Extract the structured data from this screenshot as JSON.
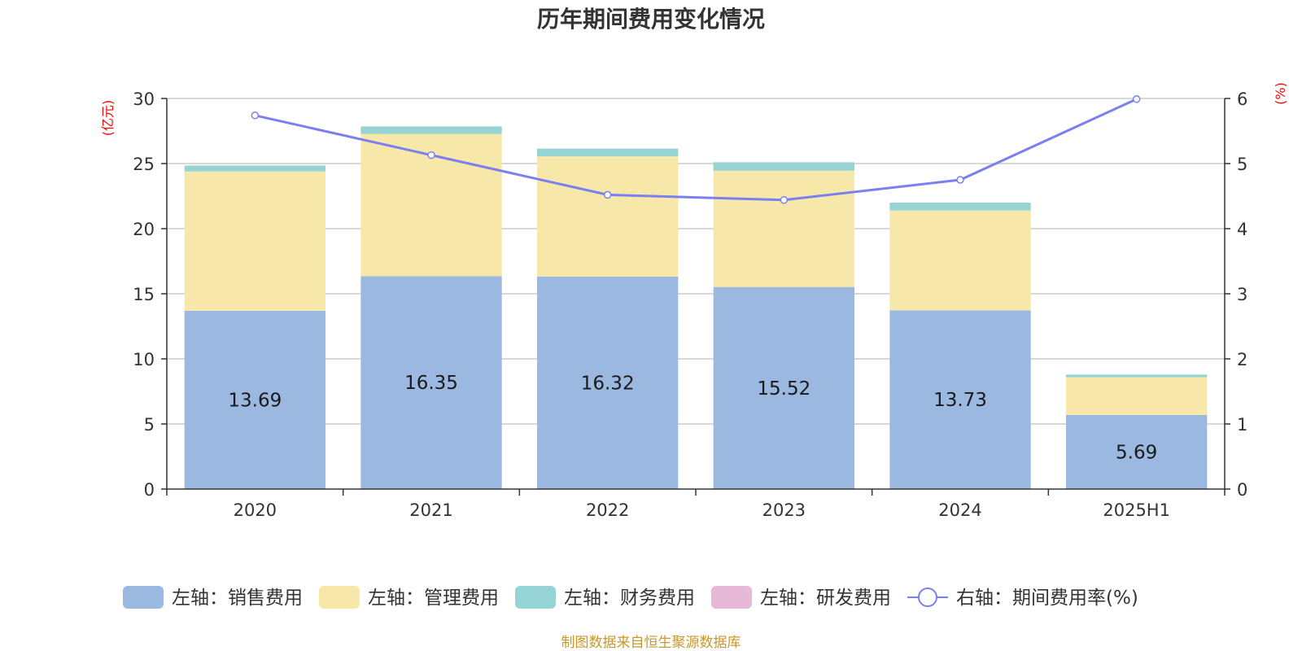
{
  "chart_data": {
    "type": "bar",
    "stacked": true,
    "title": "历年期间费用变化情况",
    "left_axis_unit": "(亿元)",
    "right_axis_unit": "(%)",
    "categories": [
      "2020",
      "2021",
      "2022",
      "2023",
      "2024",
      "2025H1"
    ],
    "ylim_left": [
      0,
      30
    ],
    "yticks_left": [
      "0",
      "5",
      "10",
      "15",
      "20",
      "25",
      "30"
    ],
    "ylim_right": [
      0,
      6
    ],
    "yticks_right": [
      "0",
      "1",
      "2",
      "3",
      "4",
      "5",
      "6"
    ],
    "grid": true,
    "series": [
      {
        "name": "左轴：销售费用",
        "axis": "left",
        "color": "#9bb8e1",
        "values": [
          13.69,
          16.35,
          16.32,
          15.52,
          13.73,
          5.69
        ],
        "labels": [
          "13.69",
          "16.35",
          "16.32",
          "15.52",
          "13.73",
          "5.69"
        ]
      },
      {
        "name": "左轴：管理费用",
        "axis": "left",
        "color": "#f7e8a9",
        "values": [
          10.71,
          10.93,
          9.23,
          8.93,
          7.67,
          2.9
        ]
      },
      {
        "name": "左轴：财务费用",
        "axis": "left",
        "color": "#96d3d4",
        "values": [
          0.45,
          0.57,
          0.6,
          0.65,
          0.6,
          0.2
        ]
      },
      {
        "name": "左轴：研发费用",
        "axis": "left",
        "color": "#e8b8d9",
        "values": [
          0,
          0,
          0,
          0,
          0,
          0
        ]
      },
      {
        "name": "右轴：期间费用率(%)",
        "axis": "right",
        "type": "line",
        "color": "#7b7ff0",
        "values": [
          5.74,
          5.13,
          4.52,
          4.44,
          4.75,
          5.99
        ]
      }
    ],
    "legend_position": "bottom"
  },
  "source": "制图数据来自恒生聚源数据库"
}
